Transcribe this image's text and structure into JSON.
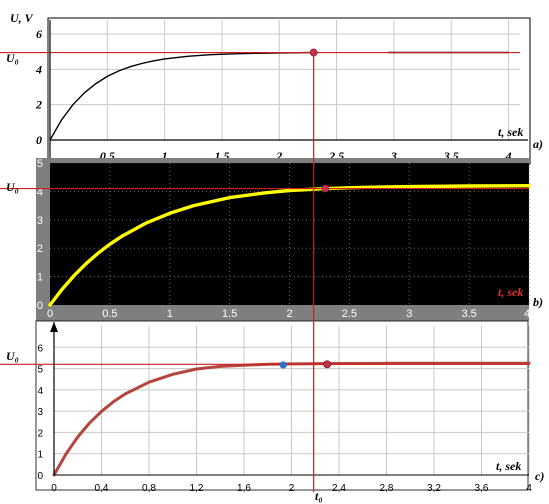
{
  "colors": {
    "marker_line": "#cc1f1f",
    "panel_b_background": "#000000",
    "panel_b_frame": "#7f7f7f",
    "panel_b_curve": "#ffff00",
    "panel_c_curve": "#b5453c",
    "dot_red": "#c2334d",
    "dot_blue": "#2d6fd1",
    "grid": "#c8c8c8"
  },
  "annotations": {
    "u0": "U₀",
    "t0": "t₀"
  },
  "chart_data": [
    {
      "type": "line",
      "panel_label": "a)",
      "ylabel": "U, V",
      "xlabel": "t, sek",
      "xlim": [
        0,
        4.1
      ],
      "ylim": [
        0,
        6
      ],
      "x_ticks": [
        "0.5",
        "1",
        "1.5",
        "2",
        "2.5",
        "3",
        "3.5",
        "4"
      ],
      "y_ticks": [
        "0",
        "2",
        "4",
        "6"
      ],
      "grid": true,
      "series": [
        {
          "x": [
            0,
            0.1,
            0.2,
            0.3,
            0.4,
            0.5,
            0.6,
            0.7,
            0.8,
            0.9,
            1.0,
            1.2,
            1.4,
            1.6,
            1.8,
            2.0,
            2.3
          ],
          "y": [
            0,
            1.13,
            2.0,
            2.67,
            3.19,
            3.6,
            3.91,
            4.15,
            4.33,
            4.48,
            4.59,
            4.74,
            4.83,
            4.88,
            4.91,
            4.93,
            4.95
          ]
        },
        {
          "x": [
            2.95,
            4.0
          ],
          "y": [
            4.95,
            4.95
          ]
        }
      ],
      "u0_level": 4.95,
      "t0": 2.3
    },
    {
      "type": "line",
      "panel_label": "b)",
      "xlabel": "t, sek",
      "xlim": [
        0,
        4
      ],
      "ylim": [
        0,
        5
      ],
      "x_ticks": [
        "0",
        "0.5",
        "1",
        "1.5",
        "2",
        "2.5",
        "3",
        "3.5",
        "4"
      ],
      "y_ticks": [
        "0",
        "1",
        "2",
        "3",
        "4",
        "5"
      ],
      "grid": true,
      "series": [
        {
          "x": [
            0,
            0.1,
            0.2,
            0.3,
            0.4,
            0.5,
            0.6,
            0.8,
            1.0,
            1.2,
            1.5,
            1.8,
            2.0,
            2.3,
            2.6,
            3.0,
            3.5,
            4.0
          ],
          "y": [
            0,
            0.55,
            1.03,
            1.45,
            1.82,
            2.14,
            2.42,
            2.88,
            3.23,
            3.5,
            3.78,
            3.95,
            4.03,
            4.1,
            4.14,
            4.17,
            4.19,
            4.2
          ]
        }
      ],
      "u0_level": 4.1,
      "t0": 2.3
    },
    {
      "type": "line",
      "panel_label": "c)",
      "xlabel": "t, sek",
      "xlim": [
        0,
        4
      ],
      "ylim": [
        0,
        7
      ],
      "x_ticks": [
        "0",
        "0,4",
        "0,8",
        "1,2",
        "1,6",
        "2",
        "2,4",
        "2,8",
        "3,2",
        "3,6",
        "4"
      ],
      "y_ticks": [
        "0",
        "1",
        "2",
        "3",
        "4",
        "5",
        "6"
      ],
      "grid": true,
      "series": [
        {
          "x": [
            0,
            0.1,
            0.2,
            0.3,
            0.4,
            0.5,
            0.6,
            0.8,
            1.0,
            1.2,
            1.4,
            1.6,
            1.8,
            2.0,
            2.4,
            2.8,
            3.2,
            3.6,
            4.0
          ],
          "y": [
            0,
            0.98,
            1.79,
            2.45,
            2.99,
            3.44,
            3.81,
            4.36,
            4.73,
            4.98,
            5.1,
            5.16,
            5.2,
            5.22,
            5.24,
            5.25,
            5.25,
            5.25,
            5.25
          ]
        }
      ],
      "u0_level": 5.2,
      "t0": 2.3,
      "blue_point": {
        "x": 1.93,
        "y": 5.17
      }
    }
  ]
}
